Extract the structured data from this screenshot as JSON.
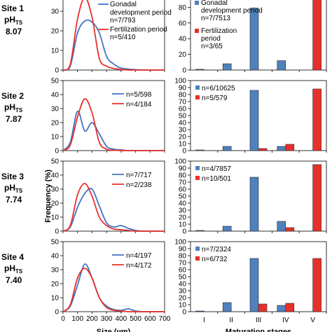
{
  "colors": {
    "blue": "#4472c4",
    "red": "#e8302a",
    "bar_blue": "#4f81bd",
    "bar_red": "#e8302a",
    "bar_edge": "#2b2b2b"
  },
  "ylabel": "Frequency (%)",
  "xlabel_left": "Size (µm)",
  "xlabel_right": "Maturation stages",
  "chart_data": [
    {
      "type": "line",
      "panel": "size",
      "site": "Site 1",
      "ph_label": "pH",
      "ph_sub": "TS",
      "ph": "8.07",
      "x": [
        0,
        50,
        100,
        150,
        200,
        250,
        300,
        350,
        400,
        450,
        500,
        550,
        600,
        650,
        700
      ],
      "xlim": [
        0,
        700
      ],
      "ylim": [
        0,
        40
      ],
      "yticks": [
        0,
        10,
        20,
        30,
        40
      ],
      "series": [
        {
          "name": "Gonadal development period",
          "n": "n=7/793",
          "color": "blue",
          "values": [
            0,
            2,
            19,
            25,
            24.5,
            19,
            7,
            3,
            1,
            0.5,
            0.2,
            0,
            0,
            0,
            0
          ]
        },
        {
          "name": "Fertilization period",
          "n": "n=5/410",
          "color": "red",
          "values": [
            0,
            3,
            26,
            37,
            27,
            6,
            2,
            0.8,
            0.3,
            0,
            0,
            0,
            0,
            0,
            0
          ]
        }
      ]
    },
    {
      "type": "bar",
      "panel": "stage",
      "site": "Site 1",
      "categories": [
        "I",
        "II",
        "III",
        "IV",
        "V"
      ],
      "ylim": [
        0,
        100
      ],
      "yticks": [
        0,
        20,
        40,
        60,
        80,
        100
      ],
      "series": [
        {
          "name": "Gonadal development period",
          "n": "n=7/7513",
          "color": "bar_blue",
          "values": [
            1,
            8,
            79,
            12,
            0
          ]
        },
        {
          "name": "Fertilization period",
          "n": "n=3/65",
          "color": "bar_red",
          "values": [
            0,
            0,
            0,
            0,
            100
          ]
        }
      ]
    },
    {
      "type": "line",
      "panel": "size",
      "site": "Site 2",
      "ph_label": "pH",
      "ph_sub": "TS",
      "ph": "7.87",
      "x": [
        0,
        50,
        100,
        150,
        200,
        250,
        300,
        350,
        400,
        450,
        500,
        550,
        600,
        650,
        700
      ],
      "xlim": [
        0,
        700
      ],
      "ylim": [
        0,
        50
      ],
      "yticks": [
        0,
        10,
        20,
        30,
        40,
        50
      ],
      "series": [
        {
          "name": "",
          "n": "n=5/598",
          "color": "blue",
          "values": [
            0,
            6,
            28,
            14,
            20,
            12,
            3,
            1,
            0.5,
            0,
            0,
            0,
            0,
            0,
            0
          ]
        },
        {
          "name": "",
          "n": "n=4/184",
          "color": "red",
          "values": [
            0,
            4,
            24,
            37,
            27,
            6,
            1,
            0.3,
            0,
            0,
            0,
            0,
            0,
            0,
            0
          ]
        }
      ]
    },
    {
      "type": "bar",
      "panel": "stage",
      "site": "Site 2",
      "categories": [
        "I",
        "II",
        "III",
        "IV",
        "V"
      ],
      "ylim": [
        0,
        100
      ],
      "yticks": [
        0,
        10,
        20,
        30,
        40,
        50,
        60,
        70,
        80,
        90,
        100
      ],
      "series": [
        {
          "name": "",
          "n": "n=6/10625",
          "color": "bar_blue",
          "values": [
            1,
            6,
            86,
            6,
            0
          ]
        },
        {
          "name": "",
          "n": "n=5/579",
          "color": "bar_red",
          "values": [
            0,
            0,
            3,
            9,
            88
          ]
        }
      ]
    },
    {
      "type": "line",
      "panel": "size",
      "site": "Site 3",
      "ph_label": "pH",
      "ph_sub": "TS",
      "ph": "7.74",
      "x": [
        0,
        50,
        100,
        150,
        200,
        250,
        300,
        350,
        400,
        450,
        500,
        550,
        600,
        650,
        700
      ],
      "xlim": [
        0,
        700
      ],
      "ylim": [
        0,
        50
      ],
      "yticks": [
        0,
        10,
        20,
        30,
        40,
        50
      ],
      "series": [
        {
          "name": "",
          "n": "n=7/717",
          "color": "blue",
          "values": [
            0,
            3,
            17,
            27,
            30,
            18,
            6,
            3,
            4,
            2,
            0.5,
            0,
            0,
            0,
            0
          ]
        },
        {
          "name": "",
          "n": "n=2/238",
          "color": "red",
          "values": [
            0,
            4,
            26,
            34,
            25,
            10,
            4,
            1.5,
            1,
            0.5,
            0,
            0,
            0,
            0,
            0
          ]
        }
      ]
    },
    {
      "type": "bar",
      "panel": "stage",
      "site": "Site 3",
      "categories": [
        "I",
        "II",
        "III",
        "IV",
        "V"
      ],
      "ylim": [
        0,
        100
      ],
      "yticks": [
        0,
        10,
        20,
        30,
        40,
        50,
        60,
        70,
        80,
        90,
        100
      ],
      "series": [
        {
          "name": "",
          "n": "n=4/7857",
          "color": "bar_blue",
          "values": [
            1,
            7,
            77,
            14,
            0
          ]
        },
        {
          "name": "",
          "n": "n=10/501",
          "color": "bar_red",
          "values": [
            0,
            0,
            0,
            5,
            95
          ]
        }
      ]
    },
    {
      "type": "line",
      "panel": "size",
      "site": "Site 4",
      "ph_label": "pH",
      "ph_sub": "TS",
      "ph": "7.40",
      "x": [
        0,
        50,
        100,
        150,
        200,
        250,
        300,
        350,
        400,
        450,
        500,
        550,
        600,
        650,
        700
      ],
      "xlim": [
        0,
        700
      ],
      "ylim": [
        0,
        50
      ],
      "yticks": [
        0,
        10,
        20,
        30,
        40,
        50
      ],
      "series": [
        {
          "name": "",
          "n": "n=4/197",
          "color": "blue",
          "values": [
            0,
            4,
            19,
            34,
            24,
            10,
            4,
            1.5,
            1,
            2,
            0.5,
            0,
            0,
            0,
            0
          ]
        },
        {
          "name": "",
          "n": "n=4/172",
          "color": "red",
          "values": [
            0,
            5,
            24,
            31,
            24,
            10,
            3,
            1,
            0.5,
            0,
            0,
            0,
            0,
            0,
            0
          ]
        }
      ]
    },
    {
      "type": "bar",
      "panel": "stage",
      "site": "Site 4",
      "categories": [
        "I",
        "II",
        "III",
        "IV",
        "V"
      ],
      "ylim": [
        0,
        100
      ],
      "yticks": [
        0,
        10,
        20,
        30,
        40,
        50,
        60,
        70,
        80,
        90,
        100
      ],
      "series": [
        {
          "name": "",
          "n": "n=7/2324",
          "color": "bar_blue",
          "values": [
            1,
            13,
            76,
            9,
            0
          ]
        },
        {
          "name": "",
          "n": "n=6/732",
          "color": "bar_red",
          "values": [
            0,
            0,
            11,
            12,
            76
          ]
        }
      ]
    }
  ],
  "size_xticks": [
    0,
    100,
    200,
    300,
    400,
    500,
    600,
    700
  ]
}
